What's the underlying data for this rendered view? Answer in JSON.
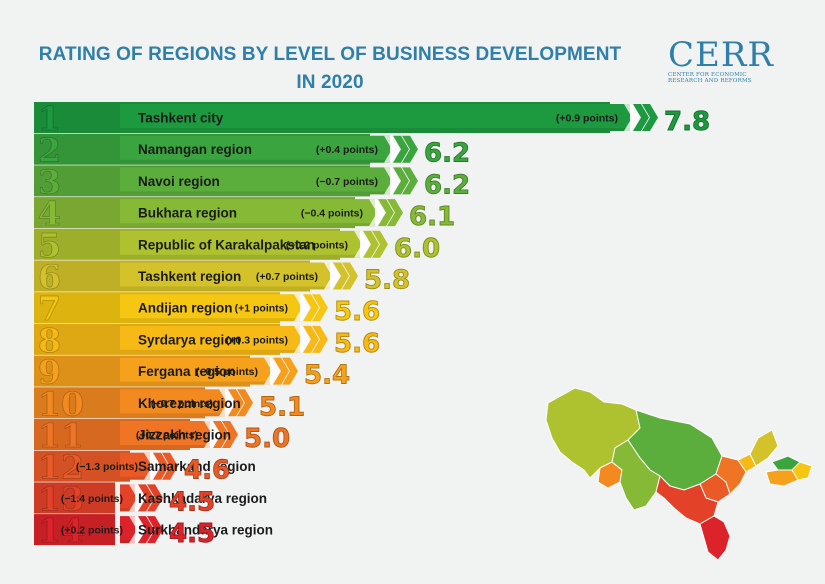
{
  "header": {
    "title_line1": "RATING OF REGIONS BY LEVEL OF BUSINESS DEVELOPMENT",
    "title_line2": "IN 2020"
  },
  "logo": {
    "word": "CERR",
    "sub_line1": "Center for Economic",
    "sub_line2": "Research and Reforms"
  },
  "chart_data": {
    "type": "bar",
    "orientation": "horizontal",
    "title": "RATING OF REGIONS BY LEVEL OF BUSINESS DEVELOPMENT IN 2020",
    "ranks": [
      1,
      2,
      3,
      4,
      5,
      6,
      7,
      8,
      9,
      10,
      11,
      12,
      13,
      14
    ],
    "categories": [
      "Tashkent city",
      "Namangan region",
      "Navoi region",
      "Bukhara region",
      "Republic of Karakalpakstan",
      "Tashkent region",
      "Andijan region",
      "Syrdarya region",
      "Fergana region",
      "Khorezm region",
      "Jizzakh region",
      "Samarkand region",
      "Kashkadarya region",
      "Surkhandarya region"
    ],
    "values": [
      7.8,
      6.2,
      6.2,
      6.1,
      6.0,
      5.8,
      5.6,
      5.6,
      5.4,
      5.1,
      5.0,
      4.6,
      4.5,
      4.5
    ],
    "value_labels": [
      "7.8",
      "6.2",
      "6.2",
      "6.1",
      "6.0",
      "5.8",
      "5.6",
      "5.6",
      "5.4",
      "5.1",
      "5.0",
      "4.6",
      "4.5",
      "4.5"
    ],
    "changes": [
      "(+0.9 points)",
      "(+0.4 points)",
      "(−0.7 points)",
      "(−0.4 points)",
      "(−0.2 points)",
      "(+0.7 points)",
      "(+1 points)",
      "(+0.3 points)",
      "(−0.5 points)",
      "(−0.7 points)",
      "(+0.7 points)",
      "(−1.3 points)",
      "(−1.4 points)",
      "(+0.2 points)"
    ],
    "colors": [
      "#1d9a3f",
      "#3aa43e",
      "#5cae3c",
      "#86ba36",
      "#aec12f",
      "#d4c22a",
      "#f6c712",
      "#f7b916",
      "#f6a11b",
      "#f28a20",
      "#ef7424",
      "#ea5a27",
      "#e44228",
      "#dc2329"
    ],
    "map_colors": {
      "karakalpakstan": "#aec12f",
      "khorezm": "#f28a20",
      "navoi": "#5cae3c",
      "bukhara": "#86ba36",
      "samarkand": "#ea5a27",
      "jizzakh": "#ef7424",
      "kashkadarya": "#e44228",
      "surkhandarya": "#dc2329",
      "syrdarya": "#f7b916",
      "tashkent": "#d4c22a",
      "namangan": "#3aa43e",
      "fergana": "#f6a11b",
      "andijan": "#f6c712"
    },
    "legend": "none",
    "grid": false
  }
}
